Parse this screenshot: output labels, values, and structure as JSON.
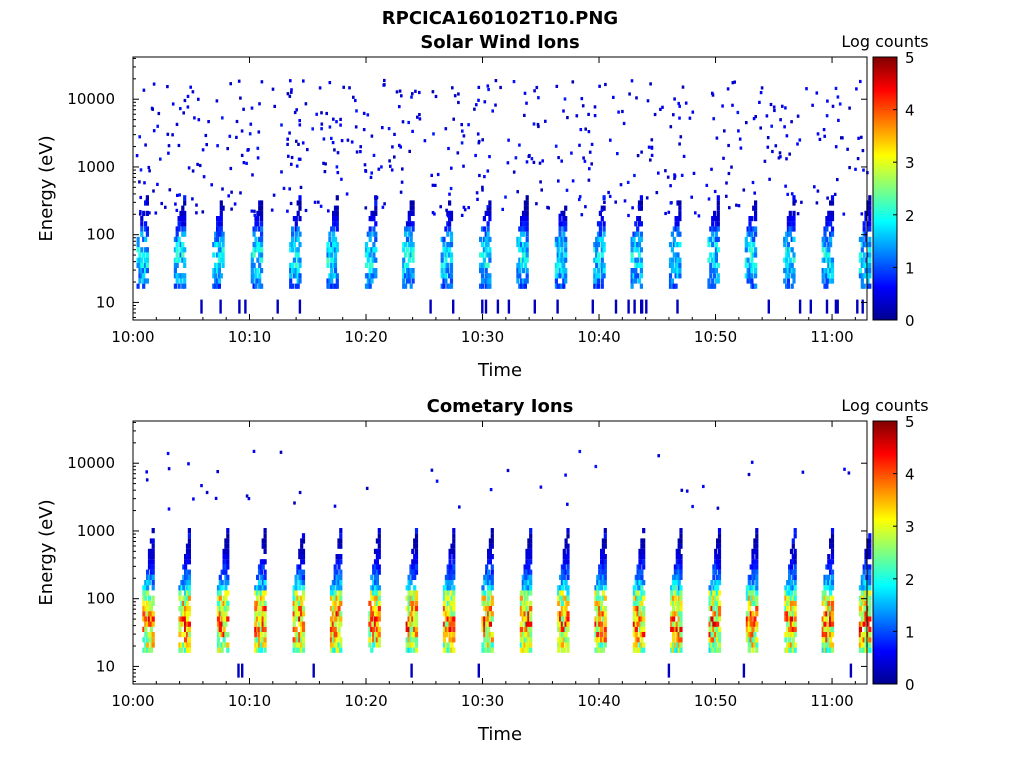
{
  "figure": {
    "title": "RPCICA160102T10.PNG"
  },
  "chart_data": [
    {
      "type": "heatmap",
      "title": "Solar Wind Ions",
      "xlabel": "Time",
      "ylabel": "Energy (eV)",
      "y_scale": "log",
      "ylim": [
        5.5,
        42000
      ],
      "x_ticks": [
        "10:00",
        "10:10",
        "10:20",
        "10:30",
        "10:40",
        "10:50",
        "11:00"
      ],
      "x_tick_minutes": [
        0,
        10,
        20,
        30,
        40,
        50,
        60
      ],
      "xlim_minutes": [
        0,
        63
      ],
      "y_ticks": [
        "10",
        "100",
        "1000",
        "10000"
      ],
      "y_tick_values": [
        10,
        100,
        1000,
        10000
      ],
      "colorbar": {
        "label": "Log counts",
        "range": [
          0,
          5
        ],
        "ticks": [
          "0",
          "1",
          "2",
          "3",
          "4",
          "5"
        ],
        "colormap": "jet"
      },
      "sweep_minutes": [
        0.3,
        3.5,
        6.8,
        10.1,
        13.4,
        16.6,
        19.9,
        23.1,
        26.4,
        29.7,
        32.9,
        36.2,
        39.5,
        42.7,
        46.0,
        49.3,
        52.5,
        55.8,
        59.1,
        62.3
      ],
      "peak_log_counts": 1.9,
      "peak_energy_ev": 45
    },
    {
      "type": "heatmap",
      "title": "Cometary Ions",
      "xlabel": "Time",
      "ylabel": "Energy (eV)",
      "y_scale": "log",
      "ylim": [
        5.5,
        42000
      ],
      "x_ticks": [
        "10:00",
        "10:10",
        "10:20",
        "10:30",
        "10:40",
        "10:50",
        "11:00"
      ],
      "x_tick_minutes": [
        0,
        10,
        20,
        30,
        40,
        50,
        60
      ],
      "xlim_minutes": [
        0,
        63
      ],
      "y_ticks": [
        "10",
        "100",
        "1000",
        "10000"
      ],
      "y_tick_values": [
        10,
        100,
        1000,
        10000
      ],
      "colorbar": {
        "label": "Log counts",
        "range": [
          0,
          5
        ],
        "ticks": [
          "0",
          "1",
          "2",
          "3",
          "4",
          "5"
        ],
        "colormap": "jet"
      },
      "sweep_minutes": [
        0.8,
        3.9,
        7.2,
        10.4,
        13.7,
        16.9,
        20.2,
        23.4,
        26.6,
        29.9,
        33.2,
        36.4,
        39.6,
        42.9,
        46.1,
        49.4,
        52.6,
        55.9,
        59.1,
        62.3
      ],
      "peak_log_counts": 3.9,
      "peak_energy_ev": 45
    }
  ]
}
